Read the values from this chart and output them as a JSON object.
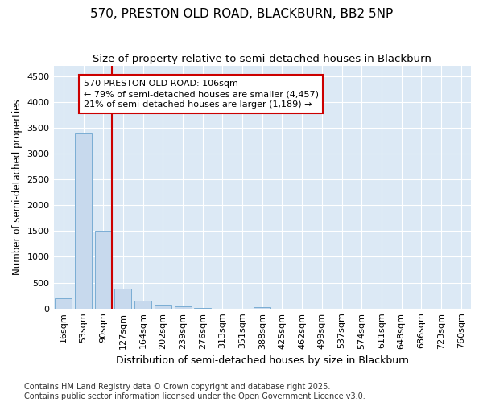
{
  "title_line1": "570, PRESTON OLD ROAD, BLACKBURN, BB2 5NP",
  "title_line2": "Size of property relative to semi-detached houses in Blackburn",
  "xlabel": "Distribution of semi-detached houses by size in Blackburn",
  "ylabel": "Number of semi-detached properties",
  "categories": [
    "16sqm",
    "53sqm",
    "90sqm",
    "127sqm",
    "164sqm",
    "202sqm",
    "239sqm",
    "276sqm",
    "313sqm",
    "351sqm",
    "388sqm",
    "425sqm",
    "462sqm",
    "499sqm",
    "537sqm",
    "574sqm",
    "611sqm",
    "648sqm",
    "686sqm",
    "723sqm",
    "760sqm"
  ],
  "values": [
    200,
    3380,
    1500,
    390,
    155,
    80,
    40,
    10,
    0,
    0,
    30,
    0,
    0,
    0,
    0,
    0,
    0,
    0,
    0,
    0,
    0
  ],
  "bar_color": "#c7d9ed",
  "bar_edge_color": "#7aadd4",
  "vline_x": 2.45,
  "vline_color": "#cc0000",
  "annotation_text": "570 PRESTON OLD ROAD: 106sqm\n← 79% of semi-detached houses are smaller (4,457)\n21% of semi-detached houses are larger (1,189) →",
  "annotation_box_color": "#ffffff",
  "annotation_box_edge": "#cc0000",
  "ylim": [
    0,
    4700
  ],
  "yticks": [
    0,
    500,
    1000,
    1500,
    2000,
    2500,
    3000,
    3500,
    4000,
    4500
  ],
  "background_color": "#dce9f5",
  "grid_color": "#ffffff",
  "footnote": "Contains HM Land Registry data © Crown copyright and database right 2025.\nContains public sector information licensed under the Open Government Licence v3.0.",
  "title_fontsize": 11,
  "subtitle_fontsize": 9.5,
  "tick_fontsize": 8,
  "ylabel_fontsize": 8.5,
  "xlabel_fontsize": 9,
  "annot_fontsize": 8,
  "footnote_fontsize": 7
}
